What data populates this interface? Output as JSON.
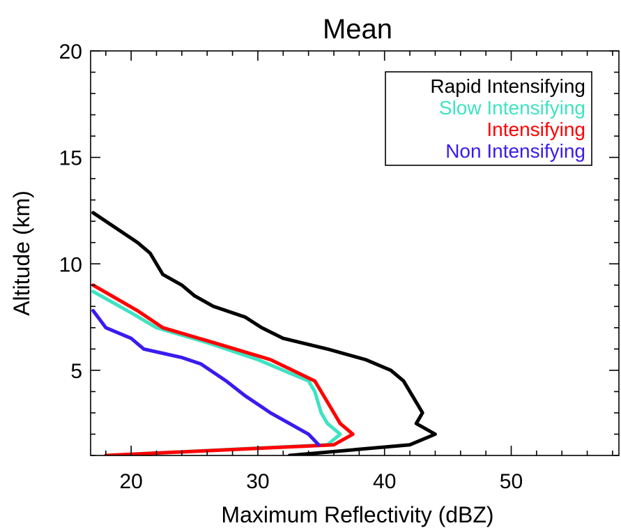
{
  "chart_data": {
    "type": "line",
    "title": "Mean",
    "xlabel": "Maximum Reflectivity (dBZ)",
    "ylabel": "Altitude (km)",
    "xlim": [
      16.8,
      58.5
    ],
    "ylim": [
      1,
      20
    ],
    "xticks": [
      20,
      30,
      40,
      50
    ],
    "yticks": [
      5,
      10,
      15,
      20
    ],
    "grid": false,
    "legend_position": "top-right",
    "series": [
      {
        "name": "Rapid Intensifying",
        "color": "#000000",
        "points": [
          [
            32.5,
            1.0
          ],
          [
            42.0,
            1.5
          ],
          [
            44.0,
            2.0
          ],
          [
            42.5,
            2.5
          ],
          [
            43.0,
            3.0
          ],
          [
            42.5,
            3.5
          ],
          [
            41.5,
            4.5
          ],
          [
            40.5,
            5.0
          ],
          [
            38.5,
            5.5
          ],
          [
            35.5,
            6.0
          ],
          [
            32.0,
            6.5
          ],
          [
            30.3,
            7.0
          ],
          [
            29.0,
            7.5
          ],
          [
            26.5,
            8.0
          ],
          [
            25.0,
            8.5
          ],
          [
            24.0,
            9.0
          ],
          [
            22.5,
            9.5
          ],
          [
            21.5,
            10.5
          ],
          [
            20.5,
            11.0
          ],
          [
            17.0,
            12.4
          ]
        ]
      },
      {
        "name": "Slow Intensifying",
        "color": "#3FE3C2",
        "points": [
          [
            18.0,
            1.0
          ],
          [
            35.5,
            1.5
          ],
          [
            36.5,
            2.0
          ],
          [
            35.5,
            2.5
          ],
          [
            35.0,
            3.0
          ],
          [
            34.5,
            4.0
          ],
          [
            34.0,
            4.5
          ],
          [
            30.0,
            5.5
          ],
          [
            26.0,
            6.3
          ],
          [
            22.0,
            7.0
          ],
          [
            20.0,
            7.7
          ],
          [
            17.0,
            8.7
          ]
        ]
      },
      {
        "name": "Intensifying",
        "color": "#FF0000",
        "points": [
          [
            18.0,
            1.0
          ],
          [
            36.0,
            1.5
          ],
          [
            37.5,
            2.0
          ],
          [
            36.5,
            2.5
          ],
          [
            36.0,
            3.0
          ],
          [
            35.0,
            4.0
          ],
          [
            34.5,
            4.5
          ],
          [
            31.0,
            5.5
          ],
          [
            26.5,
            6.3
          ],
          [
            22.5,
            7.0
          ],
          [
            20.5,
            7.8
          ],
          [
            17.0,
            9.0
          ]
        ]
      },
      {
        "name": "Non Intensifying",
        "color": "#3A1BEF",
        "points": [
          [
            34.8,
            1.5
          ],
          [
            34.0,
            2.0
          ],
          [
            32.5,
            2.5
          ],
          [
            31.0,
            3.0
          ],
          [
            29.0,
            3.8
          ],
          [
            27.5,
            4.5
          ],
          [
            25.5,
            5.3
          ],
          [
            24.0,
            5.6
          ],
          [
            22.5,
            5.8
          ],
          [
            21.0,
            6.0
          ],
          [
            20.0,
            6.5
          ],
          [
            18.0,
            7.0
          ],
          [
            17.0,
            7.8
          ]
        ]
      }
    ]
  }
}
